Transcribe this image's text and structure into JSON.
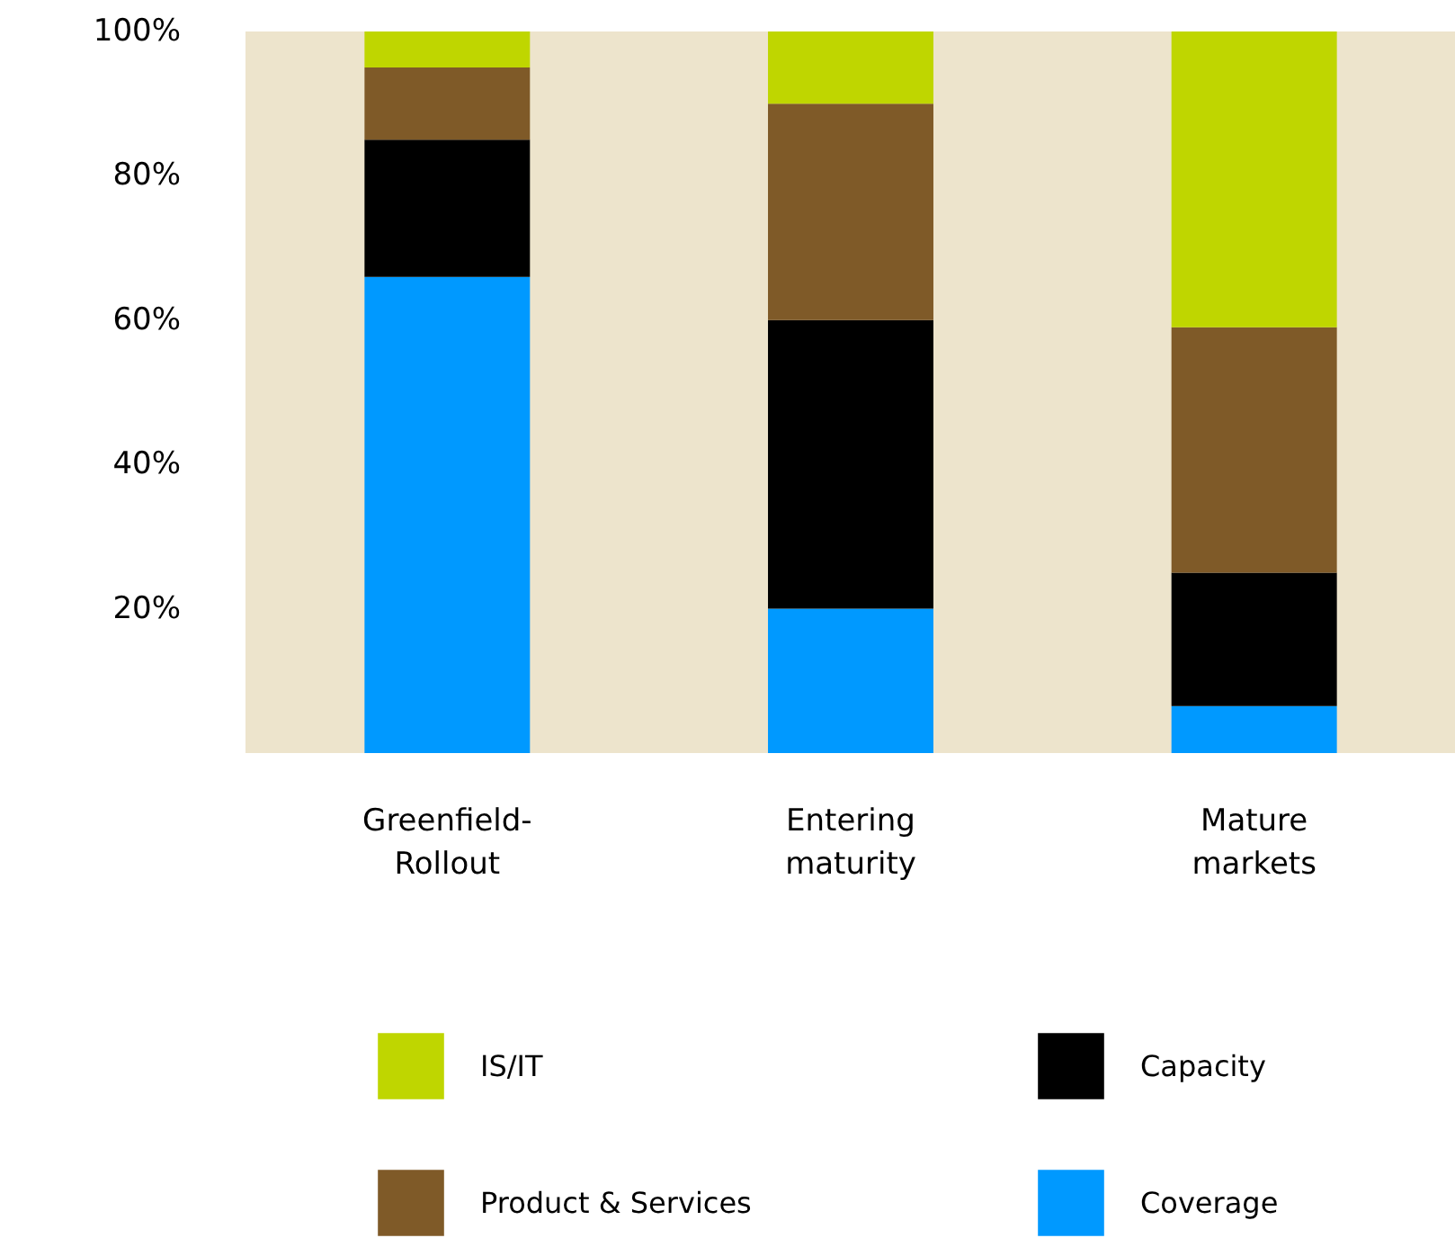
{
  "chart_data": {
    "type": "bar",
    "stacked": true,
    "categories": [
      "Greenfield-\nRollout",
      "Entering\nmaturity",
      "Mature\nmarkets"
    ],
    "series": [
      {
        "name": "Coverage",
        "color": "#0099ff",
        "values": [
          66,
          20,
          6.5
        ]
      },
      {
        "name": "Capacity",
        "color": "#000000",
        "values": [
          19,
          40,
          18.5
        ]
      },
      {
        "name": "Product & Services",
        "color": "#7f5a28",
        "values": [
          10,
          30,
          34
        ]
      },
      {
        "name": "IS/IT",
        "color": "#bfd600",
        "values": [
          5,
          10,
          41
        ]
      }
    ],
    "ylim": [
      0,
      100
    ],
    "yticks": [
      {
        "value": 20,
        "label": "20%"
      },
      {
        "value": 40,
        "label": "40%"
      },
      {
        "value": 60,
        "label": "60%"
      },
      {
        "value": 80,
        "label": "80%"
      },
      {
        "value": 100,
        "label": "100%"
      }
    ],
    "grid": false,
    "legend": "bottom"
  }
}
